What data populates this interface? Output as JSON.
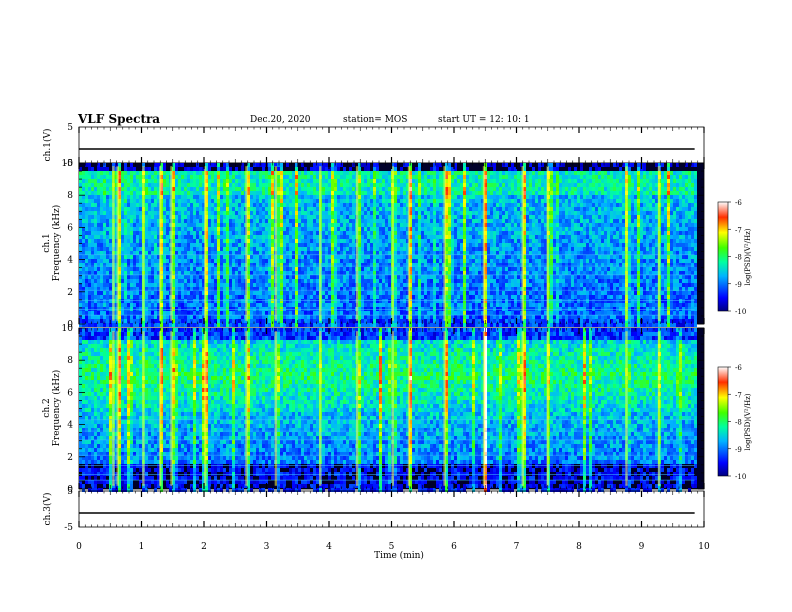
{
  "header": {
    "title": "VLF Spectra",
    "date": "Dec.20, 2020",
    "station": "station= MOS",
    "start_ut": "start  UT =   12: 10: 1"
  },
  "chart_data": [
    {
      "type": "line",
      "panel": "ch1-waveform",
      "ylabel": "ch.1(V)",
      "ylim": [
        -5,
        5
      ],
      "y_ticks": [
        "5",
        "-5"
      ],
      "series": [
        {
          "x": [
            0,
            9.85
          ],
          "y": [
            0,
            0
          ]
        }
      ]
    },
    {
      "type": "heatmap",
      "panel": "ch1-spectrogram",
      "ylabel": "ch.1\nFrequency (kHz)",
      "ylim": [
        0,
        10
      ],
      "y_ticks": [
        "0",
        "2",
        "4",
        "6",
        "8",
        "10"
      ],
      "xlim": [
        0,
        10
      ],
      "colorbar": {
        "label": "log(PSD)(V²/Hz)",
        "range": [
          -10,
          -6
        ],
        "ticks": [
          "-6",
          "-7",
          "-8",
          "-9",
          "-10"
        ]
      },
      "strong_events_min": [
        0.55,
        0.62,
        1.03,
        1.3,
        1.48,
        2.02,
        2.68,
        3.15,
        3.86,
        4.45,
        5.02,
        5.28,
        5.85,
        6.48,
        7.1,
        7.5,
        8.76,
        9.28
      ]
    },
    {
      "type": "heatmap",
      "panel": "ch2-spectrogram",
      "ylabel": "ch.2\nFrequency (kHz)",
      "ylim": [
        0,
        10
      ],
      "y_ticks": [
        "0",
        "2",
        "4",
        "6",
        "8",
        "10"
      ],
      "xlim": [
        0,
        10
      ],
      "colorbar": {
        "label": "log(PSD)(V²/Hz)",
        "range": [
          -10,
          -6
        ],
        "ticks": [
          "-6",
          "-7",
          "-8",
          "-9",
          "-10"
        ]
      },
      "strong_events_min": [
        0.55,
        0.62,
        1.03,
        1.3,
        1.48,
        2.02,
        2.68,
        3.15,
        3.86,
        4.45,
        5.02,
        5.28,
        5.85,
        6.48,
        7.1,
        7.5,
        8.76,
        9.28
      ]
    },
    {
      "type": "line",
      "panel": "ch3-waveform",
      "ylabel": "ch.3(V)",
      "ylim": [
        -5,
        5
      ],
      "y_ticks": [
        "5",
        "-5"
      ],
      "xlabel": "Time  (min)",
      "xlim": [
        0,
        10
      ],
      "x_ticks": [
        "0",
        "1",
        "2",
        "3",
        "4",
        "5",
        "6",
        "7",
        "8",
        "9",
        "10"
      ],
      "series": [
        {
          "x": [
            0,
            9.85
          ],
          "y": [
            0,
            0
          ]
        }
      ]
    }
  ]
}
